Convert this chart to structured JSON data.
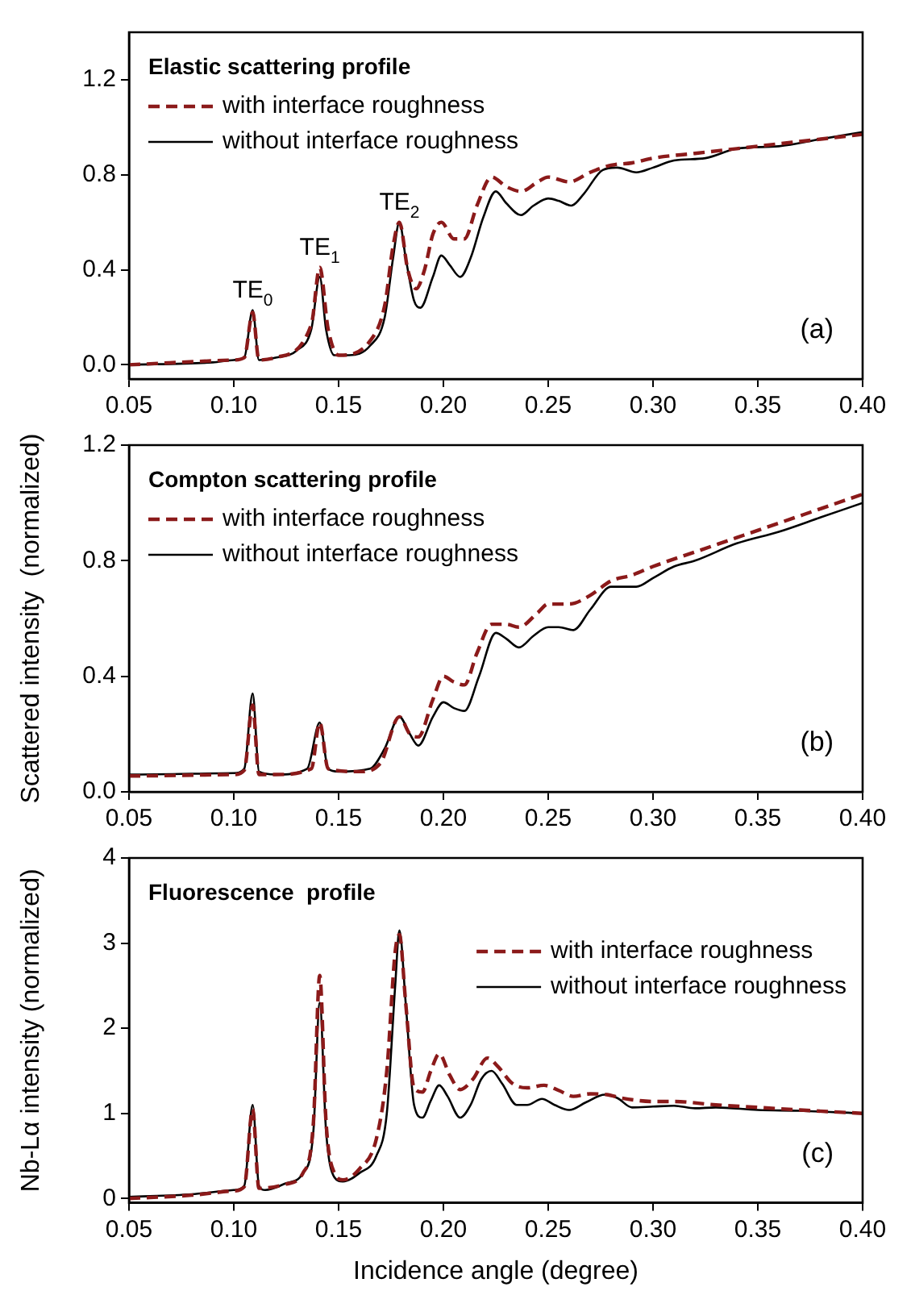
{
  "chart_data": [
    {
      "type": "line",
      "title": "Elastic scattering profile",
      "xlim": [
        0.05,
        0.4
      ],
      "xticks": [
        {
          "value": 0.05,
          "label": "0.05"
        },
        {
          "value": 0.1,
          "label": "0.10"
        },
        {
          "value": 0.15,
          "label": "0.15"
        },
        {
          "value": 0.2,
          "label": "0.20"
        },
        {
          "value": 0.25,
          "label": "0.25"
        },
        {
          "value": 0.3,
          "label": "0.30"
        },
        {
          "value": 0.35,
          "label": "0.35"
        },
        {
          "value": 0.4,
          "label": "0.40"
        }
      ],
      "ylim": [
        -0.06,
        1.4
      ],
      "yticks": [
        {
          "value": 0,
          "label": "0.0"
        },
        0.4,
        0.8,
        1.2
      ],
      "grid": false,
      "legend": "top left",
      "marker": "none",
      "annotations": [
        {
          "text": "TE$_{0}$",
          "x": 0.109,
          "y": 0.23
        },
        {
          "text": "TE$_{1}$",
          "x": 0.141,
          "y": 0.41
        },
        {
          "text": "TE$_{2}$",
          "x": 0.179,
          "y": 0.6
        },
        "(a)"
      ],
      "series": [
        {
          "name": "with interface roughness",
          "color": "#8b1a1a",
          "line_style": "dashed",
          "x": [
            0.05,
            0.1,
            0.105,
            0.109,
            0.112,
            0.12,
            0.137,
            0.141,
            0.145,
            0.15,
            0.165,
            0.172,
            0.176,
            0.179,
            0.183,
            0.187,
            0.191,
            0.195,
            0.199,
            0.205,
            0.21,
            0.216,
            0.223,
            0.23,
            0.237,
            0.245,
            0.25,
            0.26,
            0.27,
            0.28,
            0.29,
            0.3,
            0.32,
            0.34,
            0.36,
            0.38,
            0.4
          ],
          "values": [
            0,
            0.02,
            0.03,
            0.22,
            0.02,
            0.03,
            0.17,
            0.41,
            0.15,
            0.04,
            0.1,
            0.25,
            0.5,
            0.6,
            0.4,
            0.32,
            0.4,
            0.55,
            0.6,
            0.53,
            0.53,
            0.67,
            0.79,
            0.75,
            0.73,
            0.77,
            0.79,
            0.77,
            0.81,
            0.84,
            0.85,
            0.87,
            0.89,
            0.91,
            0.93,
            0.95,
            0.97
          ]
        },
        {
          "name": "without interface roughness",
          "color": "#000000",
          "line_style": "solid",
          "x": [
            0.05,
            0.09,
            0.1,
            0.105,
            0.109,
            0.112,
            0.12,
            0.13,
            0.137,
            0.141,
            0.144,
            0.148,
            0.155,
            0.165,
            0.172,
            0.176,
            0.179,
            0.182,
            0.186,
            0.189,
            0.195,
            0.199,
            0.203,
            0.208,
            0.213,
            0.219,
            0.225,
            0.23,
            0.237,
            0.243,
            0.25,
            0.255,
            0.261,
            0.267,
            0.276,
            0.283,
            0.292,
            0.3,
            0.31,
            0.325,
            0.34,
            0.36,
            0.38,
            0.4
          ],
          "values": [
            0,
            0.01,
            0.02,
            0.03,
            0.23,
            0.02,
            0.03,
            0.06,
            0.15,
            0.37,
            0.15,
            0.04,
            0.04,
            0.08,
            0.2,
            0.45,
            0.6,
            0.45,
            0.27,
            0.24,
            0.37,
            0.46,
            0.42,
            0.37,
            0.45,
            0.62,
            0.73,
            0.68,
            0.63,
            0.67,
            0.7,
            0.69,
            0.67,
            0.72,
            0.82,
            0.83,
            0.81,
            0.83,
            0.86,
            0.87,
            0.91,
            0.92,
            0.95,
            0.98
          ]
        }
      ]
    },
    {
      "type": "line",
      "title": "Compton scattering profile",
      "ylabel": "Scattered intensity  (normalized)",
      "xlim": [
        0.05,
        0.4
      ],
      "xticks": [
        {
          "value": 0.05,
          "label": "0.05"
        },
        {
          "value": 0.1,
          "label": "0.10"
        },
        {
          "value": 0.15,
          "label": "0.15"
        },
        {
          "value": 0.2,
          "label": "0.20"
        },
        {
          "value": 0.25,
          "label": "0.25"
        },
        {
          "value": 0.3,
          "label": "0.30"
        },
        {
          "value": 0.35,
          "label": "0.35"
        },
        {
          "value": 0.4,
          "label": "0.40"
        }
      ],
      "ylim": [
        0,
        1.2
      ],
      "yticks": [
        {
          "value": 0,
          "label": "0.0"
        },
        0.4,
        0.8,
        1.2
      ],
      "grid": false,
      "legend": "top left",
      "marker": "none",
      "annotations": [
        "(b)"
      ],
      "series": [
        {
          "name": "with interface roughness",
          "color": "#8b1a1a",
          "line_style": "dashed",
          "x": [
            0.05,
            0.1,
            0.105,
            0.109,
            0.112,
            0.12,
            0.137,
            0.141,
            0.145,
            0.16,
            0.17,
            0.179,
            0.184,
            0.188,
            0.195,
            0.2,
            0.205,
            0.21,
            0.216,
            0.223,
            0.23,
            0.236,
            0.245,
            0.25,
            0.26,
            0.27,
            0.28,
            0.29,
            0.3,
            0.32,
            0.34,
            0.36,
            0.38,
            0.4
          ],
          "values": [
            0.055,
            0.06,
            0.075,
            0.3,
            0.06,
            0.06,
            0.08,
            0.24,
            0.08,
            0.07,
            0.1,
            0.26,
            0.2,
            0.19,
            0.32,
            0.4,
            0.38,
            0.37,
            0.48,
            0.58,
            0.58,
            0.57,
            0.62,
            0.65,
            0.65,
            0.68,
            0.73,
            0.75,
            0.78,
            0.83,
            0.88,
            0.93,
            0.98,
            1.03
          ]
        },
        {
          "name": "without interface roughness",
          "color": "#000000",
          "line_style": "solid",
          "x": [
            0.05,
            0.1,
            0.105,
            0.109,
            0.112,
            0.12,
            0.135,
            0.141,
            0.145,
            0.15,
            0.165,
            0.172,
            0.179,
            0.184,
            0.188,
            0.195,
            0.2,
            0.205,
            0.21,
            0.217,
            0.225,
            0.23,
            0.236,
            0.243,
            0.25,
            0.255,
            0.262,
            0.27,
            0.28,
            0.285,
            0.292,
            0.3,
            0.31,
            0.32,
            0.34,
            0.36,
            0.38,
            0.4
          ],
          "values": [
            0.06,
            0.065,
            0.08,
            0.34,
            0.07,
            0.06,
            0.08,
            0.24,
            0.08,
            0.07,
            0.08,
            0.15,
            0.26,
            0.2,
            0.16,
            0.26,
            0.31,
            0.29,
            0.28,
            0.4,
            0.55,
            0.53,
            0.5,
            0.54,
            0.57,
            0.57,
            0.56,
            0.63,
            0.71,
            0.71,
            0.71,
            0.74,
            0.78,
            0.8,
            0.86,
            0.9,
            0.95,
            1.0
          ]
        }
      ]
    },
    {
      "type": "line",
      "title": "Fluorescence  profile",
      "xlabel": "Incidence angle (degree)",
      "ylabel": "Nb-Lα intensity (normalized)",
      "xlim": [
        0.05,
        0.4
      ],
      "xticks": [
        {
          "value": 0.05,
          "label": "0.05"
        },
        {
          "value": 0.1,
          "label": "0.10"
        },
        {
          "value": 0.15,
          "label": "0.15"
        },
        {
          "value": 0.2,
          "label": "0.20"
        },
        {
          "value": 0.25,
          "label": "0.25"
        },
        {
          "value": 0.3,
          "label": "0.30"
        },
        {
          "value": 0.35,
          "label": "0.35"
        },
        {
          "value": 0.4,
          "label": "0.40"
        }
      ],
      "ylim": [
        -0.05,
        4
      ],
      "yticks": [
        0,
        1,
        2,
        3,
        4
      ],
      "grid": false,
      "legend": "top right",
      "marker": "none",
      "annotations": [
        "(c)"
      ],
      "series": [
        {
          "name": "with interface roughness",
          "color": "#8b1a1a",
          "line_style": "dashed",
          "x": [
            0.05,
            0.08,
            0.1,
            0.105,
            0.109,
            0.112,
            0.125,
            0.133,
            0.138,
            0.141,
            0.144,
            0.148,
            0.152,
            0.16,
            0.168,
            0.173,
            0.177,
            0.179,
            0.182,
            0.186,
            0.19,
            0.194,
            0.198,
            0.203,
            0.208,
            0.214,
            0.221,
            0.226,
            0.233,
            0.24,
            0.248,
            0.255,
            0.262,
            0.27,
            0.278,
            0.285,
            0.3,
            0.31,
            0.33,
            0.35,
            0.37,
            0.4
          ],
          "values": [
            0,
            0.04,
            0.09,
            0.14,
            1.05,
            0.12,
            0.17,
            0.3,
            0.9,
            2.62,
            0.9,
            0.3,
            0.22,
            0.35,
            0.7,
            1.5,
            2.9,
            3.1,
            2.3,
            1.3,
            1.25,
            1.5,
            1.7,
            1.45,
            1.28,
            1.4,
            1.65,
            1.55,
            1.35,
            1.3,
            1.33,
            1.27,
            1.2,
            1.23,
            1.22,
            1.18,
            1.14,
            1.14,
            1.1,
            1.07,
            1.04,
            1.0
          ]
        },
        {
          "name": "without interface roughness",
          "color": "#000000",
          "line_style": "solid",
          "x": [
            0.05,
            0.08,
            0.1,
            0.105,
            0.109,
            0.112,
            0.115,
            0.125,
            0.133,
            0.138,
            0.141,
            0.144,
            0.148,
            0.152,
            0.16,
            0.168,
            0.173,
            0.177,
            0.179,
            0.182,
            0.186,
            0.19,
            0.194,
            0.198,
            0.202,
            0.208,
            0.213,
            0.218,
            0.223,
            0.228,
            0.235,
            0.24,
            0.247,
            0.253,
            0.26,
            0.268,
            0.277,
            0.283,
            0.29,
            0.3,
            0.31,
            0.32,
            0.33,
            0.35,
            0.37,
            0.4
          ],
          "values": [
            0.02,
            0.05,
            0.1,
            0.15,
            1.1,
            0.15,
            0.1,
            0.18,
            0.3,
            0.8,
            2.3,
            0.8,
            0.25,
            0.2,
            0.3,
            0.5,
            1.0,
            2.5,
            3.15,
            2.3,
            1.1,
            0.95,
            1.15,
            1.33,
            1.2,
            0.95,
            1.1,
            1.4,
            1.5,
            1.35,
            1.1,
            1.1,
            1.17,
            1.1,
            1.04,
            1.13,
            1.22,
            1.18,
            1.07,
            1.08,
            1.09,
            1.06,
            1.07,
            1.04,
            1.03,
            1.0
          ]
        }
      ]
    }
  ]
}
